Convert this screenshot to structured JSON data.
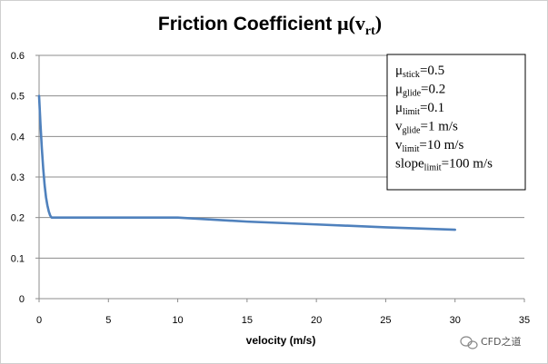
{
  "chart_data": {
    "type": "line",
    "title": {
      "prefix": "Friction Coefficient ",
      "mu": "μ",
      "open": "(",
      "var": "v",
      "sub": "rt",
      "close": ")"
    },
    "xlabel": "velocity (m/s)",
    "ylabel": "",
    "xlim": [
      0,
      35
    ],
    "ylim": [
      0,
      0.6
    ],
    "xticks": [
      "0",
      "5",
      "10",
      "15",
      "20",
      "25",
      "30",
      "35"
    ],
    "yticks": [
      "0",
      "0.1",
      "0.2",
      "0.3",
      "0.4",
      "0.5",
      "0.6"
    ],
    "grid": "horizontal",
    "series": [
      {
        "name": "friction coefficient",
        "color": "#4f81bd",
        "x": [
          0,
          0.1,
          0.2,
          0.3,
          0.4,
          0.5,
          0.6,
          0.7,
          0.8,
          0.9,
          1.0,
          2,
          5,
          10,
          15,
          20,
          25,
          30
        ],
        "y": [
          0.5,
          0.43,
          0.37,
          0.32,
          0.28,
          0.25,
          0.23,
          0.215,
          0.205,
          0.2,
          0.2,
          0.2,
          0.2,
          0.2,
          0.19,
          0.183,
          0.176,
          0.17
        ]
      }
    ],
    "legend": {
      "placement": "top-right",
      "entries": [
        {
          "base": "μ",
          "sub": "stick",
          "rest": "=0.5"
        },
        {
          "base": "μ",
          "sub": "glide",
          "rest": "=0.2"
        },
        {
          "base": "μ",
          "sub": "limit",
          "rest": "=0.1"
        },
        {
          "base": "v",
          "sub": "glide",
          "rest": "=1  m/s"
        },
        {
          "base": "v",
          "sub": "limit",
          "rest": "=10  m/s"
        },
        {
          "base": "slope",
          "sub": "limit",
          "rest": "=100  m/s"
        }
      ]
    }
  },
  "watermark": {
    "text": "CFD之道",
    "icon": "wechat-icon"
  },
  "colors": {
    "line": "#4f81bd",
    "grid": "#8c8c8c",
    "axis": "#8c8c8c"
  }
}
